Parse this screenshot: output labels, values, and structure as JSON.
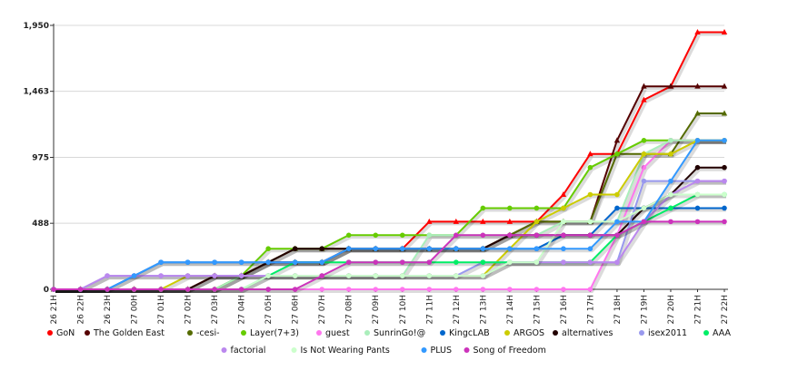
{
  "chart_data": {
    "type": "line",
    "title": "",
    "xlabel": "",
    "ylabel": "",
    "ylim": [
      0,
      1950
    ],
    "y_ticks": [
      "0",
      "488",
      "975",
      "1,463",
      "1,950"
    ],
    "y_tick_values": [
      0,
      488,
      975,
      1463,
      1950
    ],
    "grid": "horizontal",
    "legend_position": "bottom",
    "x": [
      "26 21H",
      "26 22H",
      "26 23H",
      "27 00H",
      "27 01H",
      "27 02H",
      "27 03H",
      "27 04H",
      "27 05H",
      "27 06H",
      "27 07H",
      "27 08H",
      "27 09H",
      "27 10H",
      "27 11H",
      "27 12H",
      "27 13H",
      "27 14H",
      "27 15H",
      "27 16H",
      "27 17H",
      "27 18H",
      "27 19H",
      "27 20H",
      "27 21H",
      "27 22H"
    ],
    "series": [
      {
        "name": "GoN",
        "color": "#ff0000",
        "marker": "triangle",
        "values": [
          0,
          0,
          0,
          0,
          0,
          0,
          100,
          100,
          200,
          200,
          200,
          300,
          300,
          300,
          500,
          500,
          500,
          500,
          500,
          700,
          1000,
          1000,
          1400,
          1500,
          1900,
          1900
        ]
      },
      {
        "name": "The Golden East",
        "color": "#550000",
        "marker": "triangle",
        "values": [
          0,
          0,
          0,
          0,
          0,
          0,
          100,
          100,
          200,
          200,
          200,
          300,
          300,
          300,
          300,
          300,
          300,
          400,
          500,
          500,
          500,
          1100,
          1500,
          1500,
          1500,
          1500
        ]
      },
      {
        "name": "-cesi-",
        "color": "#556b00",
        "marker": "triangle",
        "values": [
          0,
          0,
          0,
          0,
          0,
          0,
          0,
          100,
          200,
          300,
          300,
          300,
          300,
          300,
          300,
          300,
          300,
          400,
          500,
          500,
          500,
          1000,
          1000,
          1000,
          1300,
          1300
        ]
      },
      {
        "name": "Layer(7+3)",
        "color": "#66cc00",
        "marker": "circle",
        "values": [
          0,
          0,
          0,
          0,
          0,
          0,
          0,
          100,
          300,
          300,
          300,
          400,
          400,
          400,
          400,
          400,
          600,
          600,
          600,
          600,
          900,
          1000,
          1100,
          1100,
          1100,
          1100
        ]
      },
      {
        "name": "guest",
        "color": "#ff77ee",
        "marker": "circle",
        "values": [
          0,
          0,
          0,
          0,
          0,
          0,
          0,
          0,
          0,
          0,
          0,
          0,
          0,
          0,
          0,
          0,
          0,
          0,
          0,
          0,
          0,
          400,
          900,
          1100,
          1100,
          1100
        ]
      },
      {
        "name": "SunrinGo!@",
        "color": "#aaeebb",
        "marker": "circle",
        "values": [
          0,
          0,
          0,
          0,
          0,
          0,
          0,
          100,
          100,
          100,
          100,
          100,
          100,
          100,
          400,
          400,
          400,
          400,
          400,
          500,
          500,
          500,
          1000,
          1100,
          1100,
          1100
        ]
      },
      {
        "name": "KingcLAB",
        "color": "#0066cc",
        "marker": "circle",
        "values": [
          0,
          0,
          0,
          100,
          200,
          200,
          200,
          200,
          200,
          200,
          200,
          300,
          300,
          300,
          300,
          300,
          300,
          300,
          300,
          400,
          400,
          600,
          600,
          600,
          600,
          600
        ]
      },
      {
        "name": "ARGOS",
        "color": "#cccc00",
        "marker": "circle",
        "values": [
          0,
          0,
          0,
          0,
          0,
          100,
          100,
          100,
          100,
          100,
          100,
          100,
          100,
          100,
          100,
          100,
          100,
          300,
          500,
          600,
          700,
          700,
          1000,
          1000,
          1100,
          1100
        ]
      },
      {
        "name": "alternatives",
        "color": "#220000",
        "marker": "circle",
        "values": [
          0,
          0,
          0,
          0,
          0,
          0,
          100,
          100,
          200,
          300,
          300,
          300,
          300,
          300,
          300,
          300,
          300,
          400,
          400,
          400,
          400,
          400,
          600,
          700,
          900,
          900
        ]
      },
      {
        "name": "isex2011",
        "color": "#9999ee",
        "marker": "circle",
        "values": [
          0,
          0,
          100,
          100,
          100,
          100,
          100,
          100,
          100,
          100,
          100,
          100,
          100,
          100,
          100,
          100,
          200,
          200,
          200,
          200,
          200,
          200,
          800,
          800,
          800,
          800
        ]
      },
      {
        "name": "AAA",
        "color": "#00ee66",
        "marker": "circle",
        "values": [
          0,
          0,
          0,
          0,
          0,
          0,
          0,
          0,
          100,
          200,
          200,
          200,
          200,
          200,
          200,
          200,
          200,
          200,
          200,
          200,
          200,
          400,
          500,
          600,
          700,
          700
        ]
      },
      {
        "name": "factorial",
        "color": "#bb88ee",
        "marker": "circle",
        "values": [
          0,
          0,
          100,
          100,
          100,
          100,
          100,
          100,
          100,
          100,
          100,
          100,
          100,
          100,
          100,
          100,
          100,
          200,
          200,
          200,
          200,
          200,
          500,
          700,
          800,
          800
        ]
      },
      {
        "name": "Is Not Wearing Pants",
        "color": "#ccffcc",
        "marker": "circle",
        "values": [
          0,
          0,
          0,
          0,
          0,
          0,
          0,
          0,
          100,
          100,
          100,
          100,
          100,
          100,
          100,
          100,
          100,
          200,
          200,
          500,
          500,
          500,
          600,
          700,
          700,
          700
        ]
      },
      {
        "name": "PLUS",
        "color": "#3399ff",
        "marker": "circle",
        "values": [
          0,
          0,
          0,
          100,
          200,
          200,
          200,
          200,
          200,
          200,
          200,
          300,
          300,
          300,
          300,
          300,
          300,
          300,
          300,
          300,
          300,
          500,
          500,
          800,
          1100,
          1100
        ]
      },
      {
        "name": "Song of Freedom",
        "color": "#cc33bb",
        "marker": "circle",
        "values": [
          0,
          0,
          0,
          0,
          0,
          0,
          0,
          0,
          0,
          0,
          100,
          200,
          200,
          200,
          200,
          400,
          400,
          400,
          400,
          400,
          400,
          400,
          500,
          500,
          500,
          500
        ]
      }
    ]
  }
}
